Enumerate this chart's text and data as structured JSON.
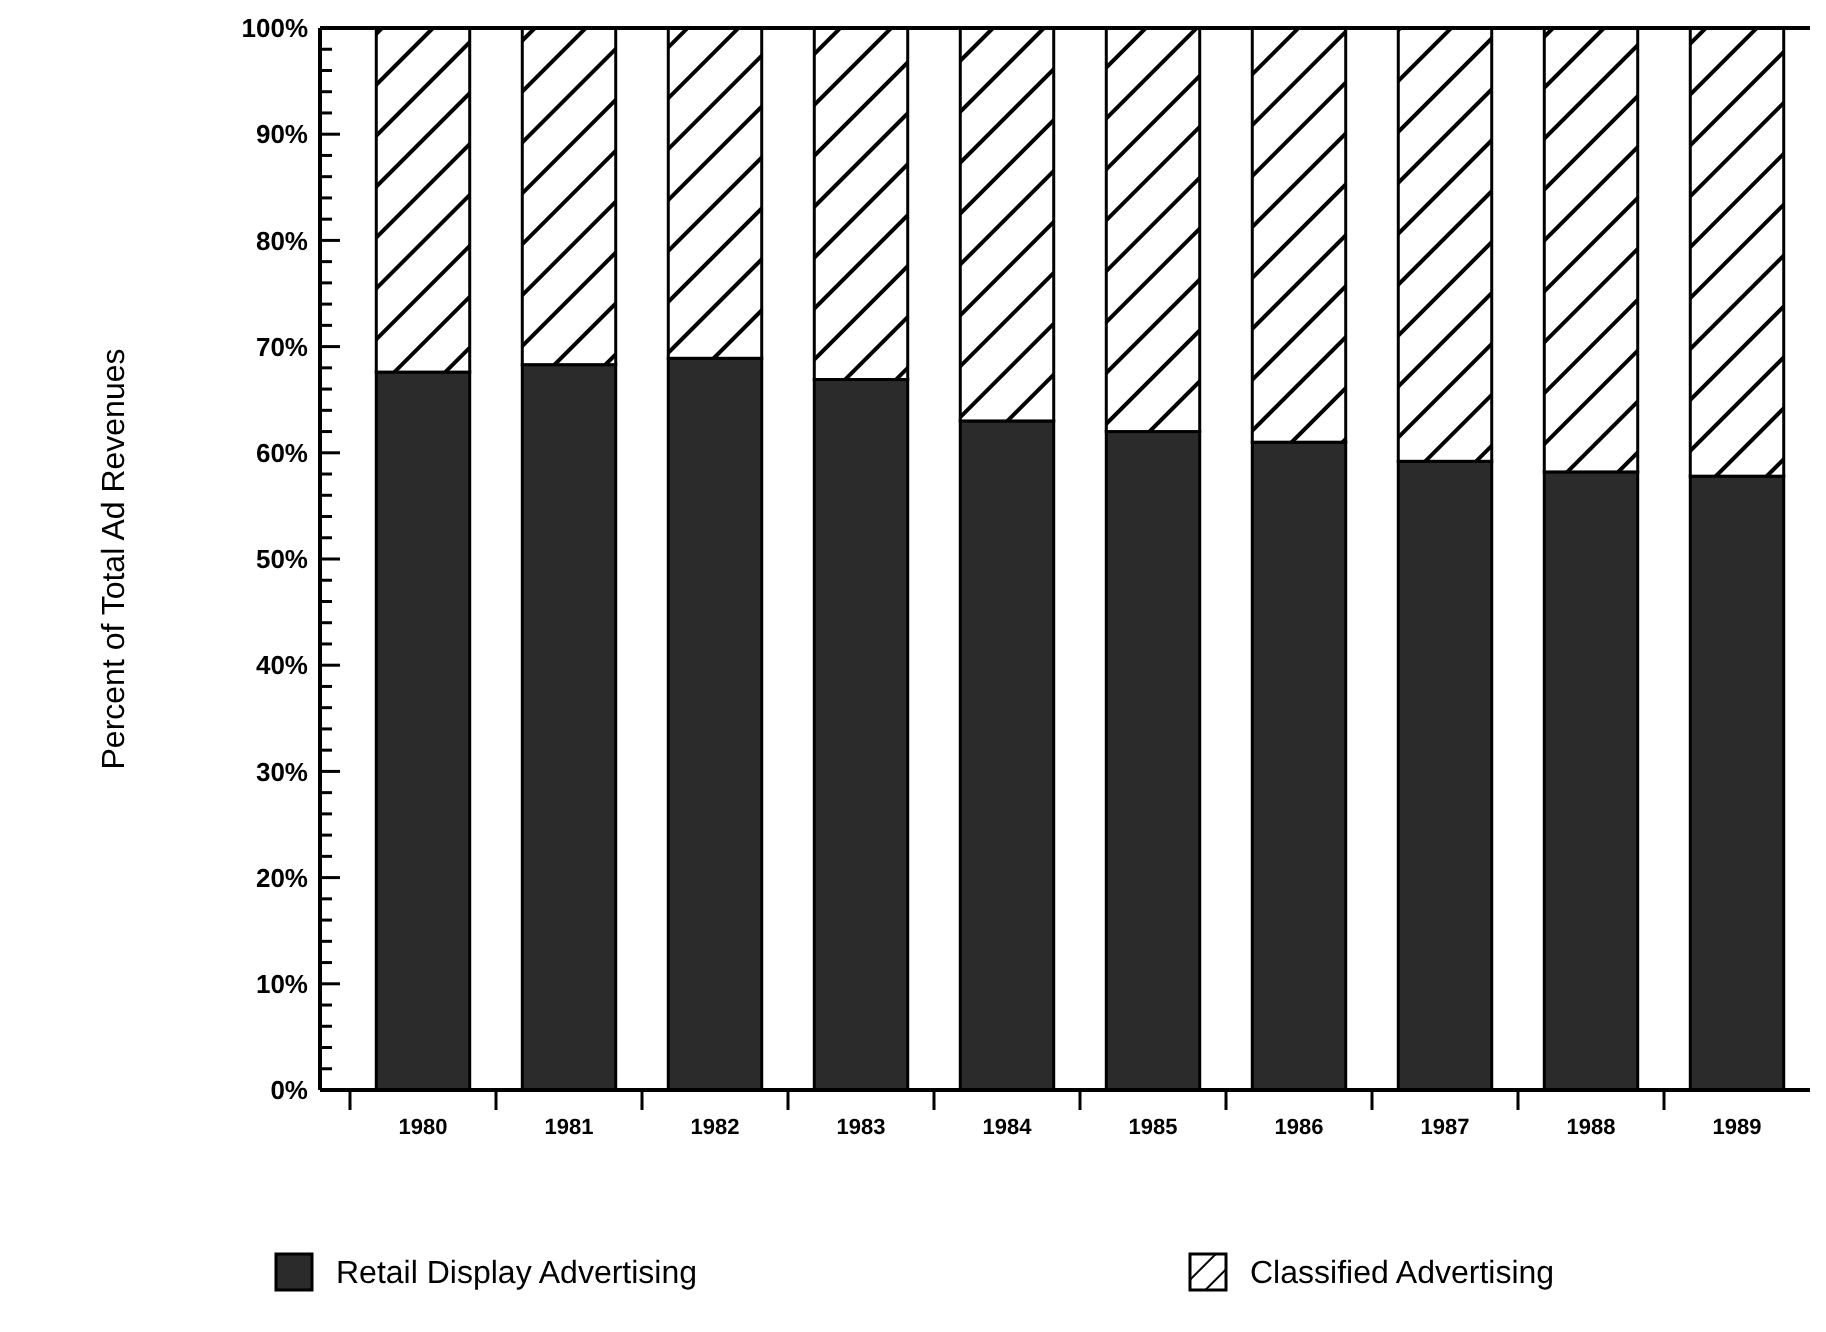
{
  "chart_data": {
    "type": "bar",
    "stacked": true,
    "ylabel": "Percent of Total Ad Revenues",
    "categories": [
      "1980",
      "1981",
      "1982",
      "1983",
      "1984",
      "1985",
      "1986",
      "1987",
      "1988",
      "1989"
    ],
    "series": [
      {
        "name": "Retail Display Advertising",
        "color": "#2b2b2b",
        "values": [
          67.6,
          68.3,
          68.9,
          66.9,
          63.0,
          62.0,
          61.0,
          59.2,
          58.2,
          57.8
        ]
      },
      {
        "name": "Classified Advertising",
        "color": "#ffffff",
        "values": [
          32.4,
          31.7,
          31.1,
          33.1,
          37.0,
          38.0,
          39.0,
          40.8,
          41.8,
          42.2
        ]
      }
    ],
    "ylim": [
      0,
      100
    ],
    "yticks": [
      {
        "value": 0,
        "label": "0%"
      },
      {
        "value": 2,
        "label": null
      },
      {
        "value": 4,
        "label": null
      },
      {
        "value": 6,
        "label": null
      },
      {
        "value": 8,
        "label": null
      },
      {
        "value": 10,
        "label": "10%"
      },
      {
        "value": 12,
        "label": null
      },
      {
        "value": 14,
        "label": null
      },
      {
        "value": 16,
        "label": null
      },
      {
        "value": 18,
        "label": null
      },
      {
        "value": 20,
        "label": "20%"
      },
      {
        "value": 22,
        "label": null
      },
      {
        "value": 24,
        "label": null
      },
      {
        "value": 26,
        "label": null
      },
      {
        "value": 28,
        "label": null
      },
      {
        "value": 30,
        "label": "30%"
      },
      {
        "value": 32,
        "label": null
      },
      {
        "value": 34,
        "label": null
      },
      {
        "value": 36,
        "label": null
      },
      {
        "value": 38,
        "label": null
      },
      {
        "value": 40,
        "label": "40%"
      },
      {
        "value": 42,
        "label": null
      },
      {
        "value": 44,
        "label": null
      },
      {
        "value": 46,
        "label": null
      },
      {
        "value": 48,
        "label": null
      },
      {
        "value": 50,
        "label": "50%"
      },
      {
        "value": 52,
        "label": null
      },
      {
        "value": 54,
        "label": null
      },
      {
        "value": 56,
        "label": null
      },
      {
        "value": 58,
        "label": null
      },
      {
        "value": 60,
        "label": "60%"
      },
      {
        "value": 62,
        "label": null
      },
      {
        "value": 64,
        "label": null
      },
      {
        "value": 66,
        "label": null
      },
      {
        "value": 68,
        "label": null
      },
      {
        "value": 70,
        "label": "70%"
      },
      {
        "value": 72,
        "label": null
      },
      {
        "value": 74,
        "label": null
      },
      {
        "value": 76,
        "label": null
      },
      {
        "value": 78,
        "label": null
      },
      {
        "value": 80,
        "label": "80%"
      },
      {
        "value": 82,
        "label": null
      },
      {
        "value": 84,
        "label": null
      },
      {
        "value": 86,
        "label": null
      },
      {
        "value": 88,
        "label": null
      },
      {
        "value": 90,
        "label": "90%"
      },
      {
        "value": 92,
        "label": null
      },
      {
        "value": 94,
        "label": null
      },
      {
        "value": 96,
        "label": null
      },
      {
        "value": 98,
        "label": null
      },
      {
        "value": 100,
        "label": "100%"
      }
    ],
    "legend": "bottom",
    "grid": false
  }
}
